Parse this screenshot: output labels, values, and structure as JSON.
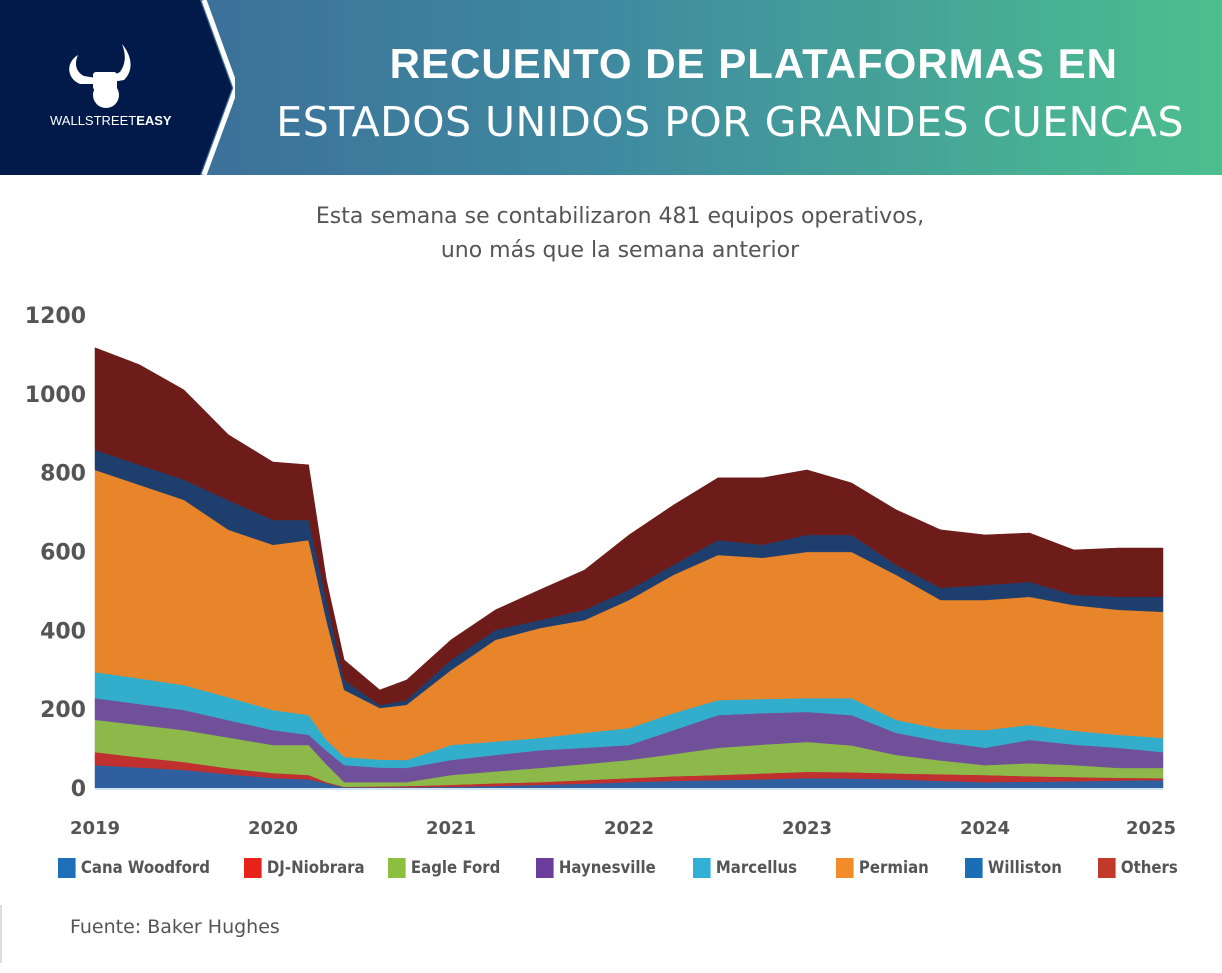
{
  "header": {
    "logo_text_light": "WALLSTREET",
    "logo_text_bold": "EASY",
    "title_line1": "RECUENTO DE PLATAFORMAS EN",
    "title_line2": "ESTADOS UNIDOS POR GRANDES CUENCAS"
  },
  "subtitle_line1": "Esta semana se contabilizaron 481 equipos operativos,",
  "subtitle_line2": "uno más que la semana anterior",
  "source": "Fuente: Baker Hughes",
  "chart_data": {
    "type": "area",
    "stacked": true,
    "title": "Recuento de plataformas en Estados Unidos por grandes cuencas",
    "xlabel": "",
    "ylabel": "",
    "xlim": [
      2019,
      2025
    ],
    "ylim": [
      0,
      1200
    ],
    "yticks": [
      0,
      200,
      400,
      600,
      800,
      1000,
      1200
    ],
    "xticks": [
      2019,
      2020,
      2021,
      2022,
      2023,
      2024,
      2025
    ],
    "legend_position": "bottom",
    "x": [
      2019,
      2019.25,
      2019.5,
      2019.75,
      2020,
      2020.2,
      2020.3,
      2020.4,
      2020.6,
      2020.75,
      2021,
      2021.25,
      2021.5,
      2021.75,
      2022,
      2022.25,
      2022.5,
      2022.75,
      2023,
      2023.25,
      2023.5,
      2023.75,
      2024,
      2024.25,
      2024.5,
      2024.75,
      2025
    ],
    "series": [
      {
        "name": "Cana Woodford",
        "color": "#2f5f9e",
        "legend_color": "#1f6fb8",
        "values": [
          58,
          52,
          46,
          35,
          25,
          22,
          12,
          2,
          2,
          2,
          3,
          5,
          8,
          11,
          15,
          18,
          20,
          22,
          25,
          24,
          22,
          18,
          15,
          16,
          17,
          19,
          20
        ]
      },
      {
        "name": "DJ-Niobrara",
        "color": "#c0302f",
        "legend_color": "#e8221b",
        "values": [
          33,
          26,
          20,
          15,
          13,
          11,
          3,
          1,
          2,
          3,
          5,
          7,
          7,
          9,
          10,
          12,
          13,
          15,
          16,
          16,
          15,
          17,
          18,
          14,
          11,
          7,
          5
        ]
      },
      {
        "name": "Eagle Ford",
        "color": "#8db84a",
        "legend_color": "#8cbf3f",
        "values": [
          82,
          82,
          81,
          78,
          71,
          76,
          45,
          12,
          11,
          10,
          25,
          30,
          36,
          41,
          46,
          56,
          69,
          73,
          76,
          68,
          47,
          35,
          25,
          33,
          30,
          25,
          26
        ]
      },
      {
        "name": "Haynesville",
        "color": "#71509a",
        "legend_color": "#6a3d9a",
        "values": [
          55,
          53,
          51,
          44,
          38,
          26,
          35,
          43,
          37,
          36,
          38,
          42,
          45,
          41,
          38,
          61,
          83,
          80,
          76,
          77,
          56,
          48,
          44,
          59,
          52,
          51,
          40
        ]
      },
      {
        "name": "Marcellus",
        "color": "#32aecc",
        "legend_color": "#31afd4",
        "values": [
          66,
          65,
          63,
          58,
          51,
          50,
          27,
          21,
          20,
          20,
          38,
          34,
          31,
          38,
          43,
          43,
          38,
          36,
          35,
          43,
          33,
          32,
          45,
          38,
          35,
          33,
          36
        ]
      },
      {
        "name": "Permian",
        "color": "#e8842a",
        "legend_color": "#f28c28",
        "values": [
          513,
          491,
          470,
          425,
          419,
          444,
          304,
          170,
          131,
          140,
          190,
          258,
          279,
          286,
          325,
          351,
          368,
          358,
          371,
          371,
          368,
          327,
          330,
          325,
          319,
          317,
          320
        ]
      },
      {
        "name": "Williston",
        "color": "#1e3f6e",
        "legend_color": "#1a6eb5",
        "values": [
          51,
          51,
          51,
          75,
          63,
          51,
          51,
          25,
          7,
          12,
          26,
          25,
          20,
          26,
          26,
          25,
          38,
          33,
          43,
          43,
          25,
          31,
          38,
          38,
          26,
          33,
          38
        ]
      },
      {
        "name": "Others",
        "color": "#6e1c1a",
        "legend_color": "#c0392b",
        "values": [
          259,
          254,
          228,
          166,
          147,
          140,
          51,
          51,
          39,
          51,
          51,
          51,
          77,
          101,
          139,
          152,
          158,
          170,
          165,
          132,
          140,
          147,
          127,
          124,
          114,
          124,
          124
        ]
      }
    ]
  }
}
